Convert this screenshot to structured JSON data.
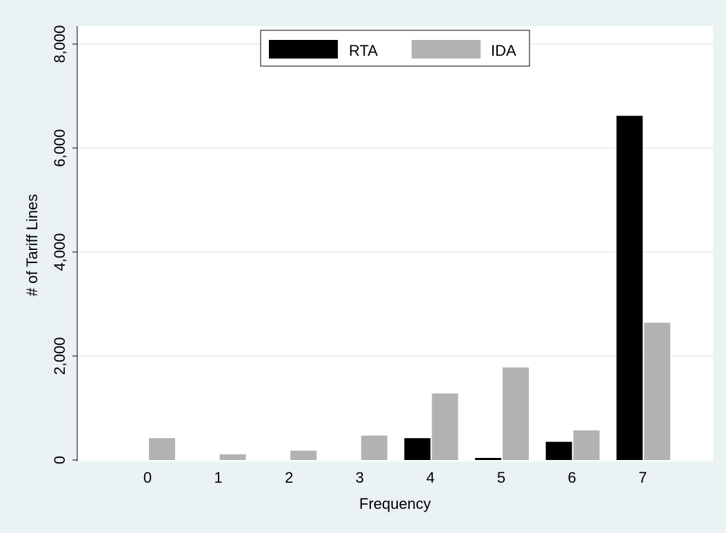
{
  "chart_data": {
    "type": "bar",
    "title": "",
    "xlabel": "Frequency",
    "ylabel": "# of Tariff Lines",
    "categories": [
      "0",
      "1",
      "2",
      "3",
      "4",
      "5",
      "6",
      "7"
    ],
    "series": [
      {
        "name": "RTA",
        "color": "#000000",
        "values": [
          0,
          0,
          0,
          0,
          420,
          40,
          350,
          6620
        ]
      },
      {
        "name": "IDA",
        "color": "#b2b2b2",
        "values": [
          420,
          110,
          180,
          470,
          1280,
          1780,
          570,
          2640
        ]
      }
    ],
    "ylim": [
      0,
      8000
    ],
    "yticks": [
      0,
      2000,
      4000,
      6000,
      8000
    ],
    "ytick_labels": [
      "0",
      "2,000",
      "4,000",
      "6,000",
      "8,000"
    ],
    "grid": true,
    "legend_position": "top-center",
    "colors": {
      "outer_background": "#eaf2f3",
      "plot_background": "#ffffff",
      "gridline": "#eaf2f3"
    }
  }
}
